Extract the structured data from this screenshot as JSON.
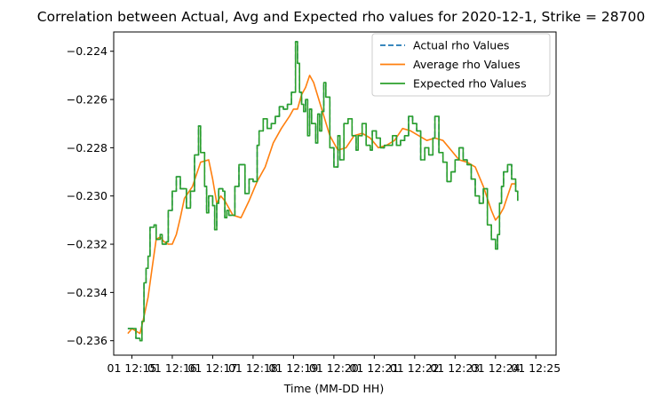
{
  "chart_data": {
    "type": "line",
    "title": "Correlation between Actual, Avg and Expected rho values for 2020-12-1, Strike = 28700",
    "xlabel": "Time (MM-DD HH)",
    "ylabel": "",
    "x_ticks": [
      "01 12:15",
      "01 12:16",
      "01 12:17",
      "01 12:18",
      "01 12:19",
      "01 12:20",
      "01 12:21",
      "01 12:22",
      "01 12:23",
      "01 12:24",
      "01 12:25"
    ],
    "x_range_minutes": [
      14.55,
      25.5
    ],
    "ylim": [
      -0.2366,
      -0.2232
    ],
    "y_ticks": [
      -0.236,
      -0.234,
      -0.232,
      -0.23,
      -0.228,
      -0.226,
      -0.224
    ],
    "y_tick_labels": [
      "−0.236",
      "−0.234",
      "−0.232",
      "−0.230",
      "−0.228",
      "−0.226",
      "−0.224"
    ],
    "legend_position": "top-right",
    "grid": false,
    "series": [
      {
        "name": "Actual rho Values",
        "color": "#1f77b4",
        "dash": true,
        "x": [
          14.9,
          15.05,
          15.1,
          15.2,
          15.25,
          15.3,
          15.35,
          15.4,
          15.45,
          15.55,
          15.6,
          15.7,
          15.75,
          15.8,
          15.85,
          15.9,
          16.0,
          16.1,
          16.2,
          16.35,
          16.45,
          16.55,
          16.65,
          16.7,
          16.8,
          16.85,
          16.9,
          17.0,
          17.05,
          17.1,
          17.15,
          17.25,
          17.3,
          17.35,
          17.4,
          17.5,
          17.55,
          17.65,
          17.8,
          17.9,
          18.0,
          18.1,
          18.15,
          18.25,
          18.35,
          18.45,
          18.55,
          18.65,
          18.75,
          18.85,
          18.95,
          19.05,
          19.1,
          19.15,
          19.2,
          19.25,
          19.3,
          19.35,
          19.4,
          19.45,
          19.55,
          19.6,
          19.65,
          19.7,
          19.75,
          19.8,
          19.9,
          20.0,
          20.1,
          20.15,
          20.25,
          20.35,
          20.45,
          20.55,
          20.6,
          20.7,
          20.8,
          20.9,
          20.95,
          21.05,
          21.15,
          21.25,
          21.35,
          21.45,
          21.55,
          21.65,
          21.75,
          21.85,
          21.95,
          22.05,
          22.15,
          22.25,
          22.35,
          22.45,
          22.5,
          22.6,
          22.7,
          22.8,
          22.9,
          23.0,
          23.1,
          23.2,
          23.3,
          23.4,
          23.5,
          23.6,
          23.7,
          23.8,
          23.9,
          24.0,
          24.05,
          24.1,
          24.15,
          24.2,
          24.3,
          24.4,
          24.5,
          24.55
        ],
        "y": [
          -0.2355,
          -0.2355,
          -0.2359,
          -0.236,
          -0.2352,
          -0.2336,
          -0.233,
          -0.2325,
          -0.2313,
          -0.2312,
          -0.2318,
          -0.2316,
          -0.232,
          -0.232,
          -0.2319,
          -0.2306,
          -0.2298,
          -0.2292,
          -0.2297,
          -0.2305,
          -0.2298,
          -0.2283,
          -0.2271,
          -0.2282,
          -0.2296,
          -0.2307,
          -0.23,
          -0.2304,
          -0.2314,
          -0.2303,
          -0.2297,
          -0.2298,
          -0.2309,
          -0.2306,
          -0.2308,
          -0.2308,
          -0.2296,
          -0.2287,
          -0.2299,
          -0.2293,
          -0.2294,
          -0.2279,
          -0.2273,
          -0.2268,
          -0.2272,
          -0.227,
          -0.2267,
          -0.2263,
          -0.2264,
          -0.2262,
          -0.2257,
          -0.2236,
          -0.2245,
          -0.2257,
          -0.2262,
          -0.2265,
          -0.226,
          -0.2275,
          -0.2264,
          -0.227,
          -0.2278,
          -0.2266,
          -0.2273,
          -0.2265,
          -0.2253,
          -0.2259,
          -0.228,
          -0.2288,
          -0.2275,
          -0.2285,
          -0.227,
          -0.2268,
          -0.2275,
          -0.2281,
          -0.2275,
          -0.227,
          -0.2279,
          -0.2281,
          -0.2273,
          -0.2276,
          -0.228,
          -0.2279,
          -0.2279,
          -0.2275,
          -0.2279,
          -0.2277,
          -0.2275,
          -0.2267,
          -0.227,
          -0.2273,
          -0.2285,
          -0.228,
          -0.2283,
          -0.2276,
          -0.2267,
          -0.2282,
          -0.2286,
          -0.2294,
          -0.229,
          -0.2285,
          -0.228,
          -0.2285,
          -0.2287,
          -0.2293,
          -0.23,
          -0.2303,
          -0.2297,
          -0.2312,
          -0.2318,
          -0.2322,
          -0.2316,
          -0.2303,
          -0.2296,
          -0.229,
          -0.2287,
          -0.2293,
          -0.2298,
          -0.2302
        ]
      },
      {
        "name": "Average rho Values",
        "color": "#ff7f0e",
        "dash": false,
        "x": [
          14.9,
          15.0,
          15.1,
          15.2,
          15.3,
          15.4,
          15.5,
          15.6,
          15.7,
          15.8,
          15.9,
          16.0,
          16.1,
          16.2,
          16.3,
          16.5,
          16.7,
          16.9,
          17.0,
          17.1,
          17.2,
          17.3,
          17.5,
          17.7,
          17.9,
          18.1,
          18.3,
          18.5,
          18.7,
          18.9,
          19.0,
          19.1,
          19.2,
          19.3,
          19.4,
          19.5,
          19.7,
          19.9,
          20.1,
          20.3,
          20.5,
          20.7,
          20.9,
          21.1,
          21.3,
          21.5,
          21.7,
          21.9,
          22.1,
          22.3,
          22.5,
          22.7,
          22.9,
          23.1,
          23.3,
          23.5,
          23.7,
          23.9,
          24.0,
          24.1,
          24.2,
          24.3,
          24.4,
          24.5
        ],
        "y": [
          -0.2357,
          -0.2355,
          -0.2356,
          -0.2357,
          -0.235,
          -0.2342,
          -0.233,
          -0.2318,
          -0.2317,
          -0.2319,
          -0.232,
          -0.232,
          -0.2316,
          -0.2309,
          -0.2301,
          -0.2296,
          -0.2286,
          -0.2285,
          -0.2293,
          -0.2303,
          -0.23,
          -0.2302,
          -0.2308,
          -0.2309,
          -0.2302,
          -0.2294,
          -0.2288,
          -0.2278,
          -0.2272,
          -0.2267,
          -0.2264,
          -0.2264,
          -0.2258,
          -0.2255,
          -0.225,
          -0.2253,
          -0.2264,
          -0.2275,
          -0.2281,
          -0.228,
          -0.2275,
          -0.2274,
          -0.2276,
          -0.228,
          -0.2279,
          -0.2277,
          -0.2272,
          -0.2273,
          -0.2275,
          -0.2277,
          -0.2276,
          -0.2277,
          -0.2281,
          -0.2285,
          -0.2286,
          -0.2288,
          -0.2296,
          -0.2306,
          -0.231,
          -0.2308,
          -0.2305,
          -0.23,
          -0.2295,
          -0.2295
        ]
      },
      {
        "name": "Expected rho Values",
        "color": "#2ca02c",
        "dash": false,
        "x": [
          14.9,
          15.05,
          15.1,
          15.2,
          15.25,
          15.3,
          15.35,
          15.4,
          15.45,
          15.55,
          15.6,
          15.7,
          15.75,
          15.8,
          15.85,
          15.9,
          16.0,
          16.1,
          16.2,
          16.35,
          16.45,
          16.55,
          16.65,
          16.7,
          16.8,
          16.85,
          16.9,
          17.0,
          17.05,
          17.1,
          17.15,
          17.25,
          17.3,
          17.35,
          17.4,
          17.5,
          17.55,
          17.65,
          17.8,
          17.9,
          18.0,
          18.1,
          18.15,
          18.25,
          18.35,
          18.45,
          18.55,
          18.65,
          18.75,
          18.85,
          18.95,
          19.05,
          19.1,
          19.15,
          19.2,
          19.25,
          19.3,
          19.35,
          19.4,
          19.45,
          19.55,
          19.6,
          19.65,
          19.7,
          19.75,
          19.8,
          19.9,
          20.0,
          20.1,
          20.15,
          20.25,
          20.35,
          20.45,
          20.55,
          20.6,
          20.7,
          20.8,
          20.9,
          20.95,
          21.05,
          21.15,
          21.25,
          21.35,
          21.45,
          21.55,
          21.65,
          21.75,
          21.85,
          21.95,
          22.05,
          22.15,
          22.25,
          22.35,
          22.45,
          22.5,
          22.6,
          22.7,
          22.8,
          22.9,
          23.0,
          23.1,
          23.2,
          23.3,
          23.4,
          23.5,
          23.6,
          23.7,
          23.8,
          23.9,
          24.0,
          24.05,
          24.1,
          24.15,
          24.2,
          24.3,
          24.4,
          24.5,
          24.55
        ],
        "y": [
          -0.2355,
          -0.2355,
          -0.2359,
          -0.236,
          -0.2352,
          -0.2336,
          -0.233,
          -0.2325,
          -0.2313,
          -0.2312,
          -0.2318,
          -0.2316,
          -0.232,
          -0.232,
          -0.2319,
          -0.2306,
          -0.2298,
          -0.2292,
          -0.2297,
          -0.2305,
          -0.2298,
          -0.2283,
          -0.2271,
          -0.2282,
          -0.2296,
          -0.2307,
          -0.23,
          -0.2304,
          -0.2314,
          -0.2303,
          -0.2297,
          -0.2298,
          -0.2309,
          -0.2306,
          -0.2308,
          -0.2308,
          -0.2296,
          -0.2287,
          -0.2299,
          -0.2293,
          -0.2294,
          -0.2279,
          -0.2273,
          -0.2268,
          -0.2272,
          -0.227,
          -0.2267,
          -0.2263,
          -0.2264,
          -0.2262,
          -0.2257,
          -0.2236,
          -0.2245,
          -0.2257,
          -0.2262,
          -0.2265,
          -0.226,
          -0.2275,
          -0.2264,
          -0.227,
          -0.2278,
          -0.2266,
          -0.2273,
          -0.2265,
          -0.2253,
          -0.2259,
          -0.228,
          -0.2288,
          -0.2275,
          -0.2285,
          -0.227,
          -0.2268,
          -0.2275,
          -0.2281,
          -0.2275,
          -0.227,
          -0.2279,
          -0.2281,
          -0.2273,
          -0.2276,
          -0.228,
          -0.2279,
          -0.2279,
          -0.2275,
          -0.2279,
          -0.2277,
          -0.2275,
          -0.2267,
          -0.227,
          -0.2273,
          -0.2285,
          -0.228,
          -0.2283,
          -0.2276,
          -0.2267,
          -0.2282,
          -0.2286,
          -0.2294,
          -0.229,
          -0.2285,
          -0.228,
          -0.2285,
          -0.2287,
          -0.2293,
          -0.23,
          -0.2303,
          -0.2297,
          -0.2312,
          -0.2318,
          -0.2322,
          -0.2316,
          -0.2303,
          -0.2296,
          -0.229,
          -0.2287,
          -0.2293,
          -0.2298,
          -0.2302
        ]
      }
    ]
  }
}
